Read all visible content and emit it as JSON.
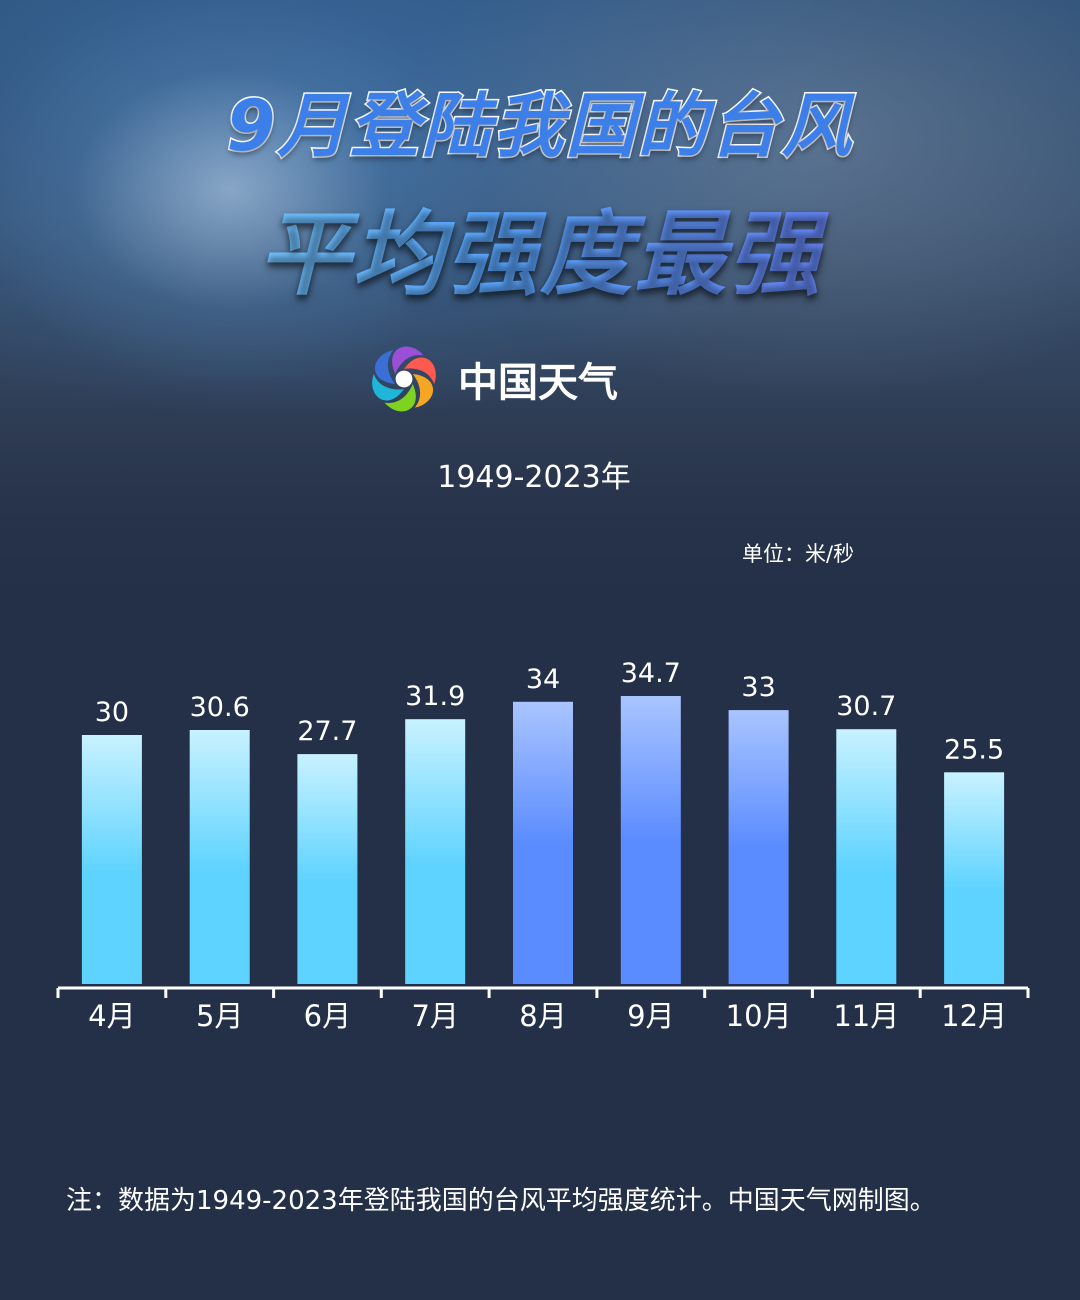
{
  "header": {
    "title_line1": "9月登陆我国的台风",
    "title_line2": "平均强度最强"
  },
  "brand": {
    "name": "中国天气",
    "logo_icon": "china-weather-logo-icon"
  },
  "period_label": "1949-2023年",
  "unit_label": "单位：米/秒",
  "footnote": "注：数据为1949-2023年登陆我国的台风平均强度统计。中国天气网制图。",
  "colors": {
    "bar_light_top": "#c8f2ff",
    "bar_light_bottom": "#5fd3ff",
    "bar_blue_top": "#a9c4ff",
    "bar_blue_bottom": "#5b8cff",
    "axis": "#ffffff",
    "background": "#243048"
  },
  "chart_data": {
    "type": "bar",
    "categories": [
      "4月",
      "5月",
      "6月",
      "7月",
      "8月",
      "9月",
      "10月",
      "11月",
      "12月"
    ],
    "values": [
      30,
      30.6,
      27.7,
      31.9,
      34,
      34.7,
      33,
      30.7,
      25.5
    ],
    "value_labels": [
      "30",
      "30.6",
      "27.7",
      "31.9",
      "34",
      "34.7",
      "33",
      "30.7",
      "25.5"
    ],
    "highlighted_categories": [
      "8月",
      "9月",
      "10月"
    ],
    "title": "",
    "xlabel": "",
    "ylabel": "",
    "unit": "米/秒",
    "ylim": [
      0,
      35
    ],
    "grid": false,
    "legend": "none"
  }
}
